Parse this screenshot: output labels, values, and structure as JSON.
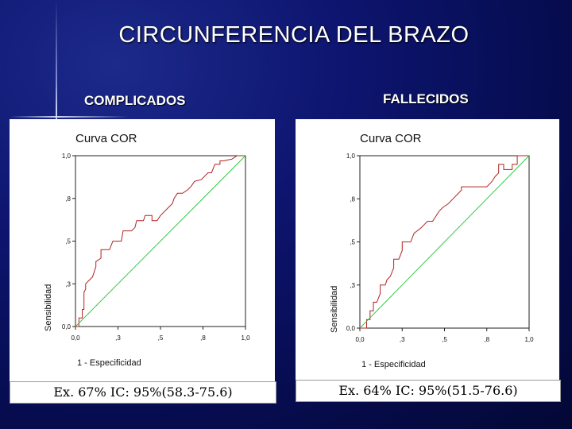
{
  "slide": {
    "title": "CIRCUNFERENCIA DEL BRAZO"
  },
  "colors": {
    "roc_line": "#b22222",
    "reference_line": "#2ecc40",
    "axis": "#222222"
  },
  "panels": [
    {
      "subtitle": "COMPLICADOS",
      "footer": "Ex. 67%  IC: 95%(58.3-75.6)"
    },
    {
      "subtitle": "FALLECIDOS",
      "footer": "Ex. 64%  IC: 95%(51.5-76.6)"
    }
  ],
  "chart_data": [
    {
      "type": "line",
      "title": "Curva COR",
      "xlabel": "1 - Especificidad",
      "ylabel": "Sensibilidad",
      "xlim": [
        0,
        1
      ],
      "ylim": [
        0,
        1
      ],
      "x_ticks": [
        "0,0",
        ",3",
        ",5",
        ",8",
        "1,0"
      ],
      "y_ticks": [
        "0,0",
        ",3",
        ",5",
        ",8",
        "1,0"
      ],
      "grid": false,
      "series": [
        {
          "role": "roc",
          "points": [
            [
              0,
              0
            ],
            [
              0.02,
              0
            ],
            [
              0.02,
              0.05
            ],
            [
              0.04,
              0.05
            ],
            [
              0.04,
              0.1
            ],
            [
              0.05,
              0.1
            ],
            [
              0.05,
              0.2
            ],
            [
              0.06,
              0.22
            ],
            [
              0.06,
              0.25
            ],
            [
              0.08,
              0.27
            ],
            [
              0.1,
              0.29
            ],
            [
              0.12,
              0.35
            ],
            [
              0.12,
              0.38
            ],
            [
              0.15,
              0.4
            ],
            [
              0.15,
              0.45
            ],
            [
              0.2,
              0.45
            ],
            [
              0.22,
              0.5
            ],
            [
              0.27,
              0.5
            ],
            [
              0.28,
              0.56
            ],
            [
              0.33,
              0.56
            ],
            [
              0.35,
              0.58
            ],
            [
              0.36,
              0.62
            ],
            [
              0.4,
              0.62
            ],
            [
              0.41,
              0.65
            ],
            [
              0.45,
              0.65
            ],
            [
              0.45,
              0.62
            ],
            [
              0.48,
              0.62
            ],
            [
              0.5,
              0.65
            ],
            [
              0.55,
              0.7
            ],
            [
              0.57,
              0.72
            ],
            [
              0.58,
              0.75
            ],
            [
              0.6,
              0.78
            ],
            [
              0.63,
              0.78
            ],
            [
              0.66,
              0.8
            ],
            [
              0.68,
              0.82
            ],
            [
              0.7,
              0.85
            ],
            [
              0.74,
              0.86
            ],
            [
              0.76,
              0.88
            ],
            [
              0.78,
              0.9
            ],
            [
              0.8,
              0.9
            ],
            [
              0.82,
              0.95
            ],
            [
              0.85,
              0.95
            ],
            [
              0.85,
              0.97
            ],
            [
              0.87,
              0.97
            ],
            [
              0.92,
              0.98
            ],
            [
              0.95,
              1.0
            ],
            [
              1.0,
              1.0
            ]
          ]
        },
        {
          "role": "reference",
          "points": [
            [
              0,
              0
            ],
            [
              1,
              1
            ]
          ]
        }
      ]
    },
    {
      "type": "line",
      "title": "Curva COR",
      "xlabel": "1 - Especificidad",
      "ylabel": "Sensibilidad",
      "xlim": [
        0,
        1
      ],
      "ylim": [
        0,
        1
      ],
      "x_ticks": [
        "0,0",
        ",3",
        ",5",
        ",8",
        "1,0"
      ],
      "y_ticks": [
        "0,0",
        ",3",
        ",5",
        ",8",
        "1,0"
      ],
      "grid": false,
      "series": [
        {
          "role": "roc",
          "points": [
            [
              0,
              0
            ],
            [
              0.04,
              0
            ],
            [
              0.04,
              0.05
            ],
            [
              0.06,
              0.05
            ],
            [
              0.06,
              0.1
            ],
            [
              0.08,
              0.1
            ],
            [
              0.08,
              0.15
            ],
            [
              0.1,
              0.15
            ],
            [
              0.12,
              0.2
            ],
            [
              0.12,
              0.25
            ],
            [
              0.15,
              0.25
            ],
            [
              0.16,
              0.28
            ],
            [
              0.18,
              0.3
            ],
            [
              0.2,
              0.35
            ],
            [
              0.2,
              0.4
            ],
            [
              0.23,
              0.4
            ],
            [
              0.25,
              0.45
            ],
            [
              0.25,
              0.5
            ],
            [
              0.3,
              0.5
            ],
            [
              0.32,
              0.55
            ],
            [
              0.36,
              0.58
            ],
            [
              0.38,
              0.6
            ],
            [
              0.4,
              0.62
            ],
            [
              0.43,
              0.62
            ],
            [
              0.45,
              0.65
            ],
            [
              0.47,
              0.68
            ],
            [
              0.49,
              0.7
            ],
            [
              0.52,
              0.72
            ],
            [
              0.55,
              0.75
            ],
            [
              0.6,
              0.8
            ],
            [
              0.6,
              0.82
            ],
            [
              0.75,
              0.82
            ],
            [
              0.78,
              0.85
            ],
            [
              0.8,
              0.88
            ],
            [
              0.82,
              0.9
            ],
            [
              0.82,
              0.95
            ],
            [
              0.85,
              0.95
            ],
            [
              0.85,
              0.92
            ],
            [
              0.9,
              0.92
            ],
            [
              0.9,
              0.95
            ],
            [
              0.93,
              0.95
            ],
            [
              0.93,
              1.0
            ],
            [
              1.0,
              1.0
            ]
          ]
        },
        {
          "role": "reference",
          "points": [
            [
              0,
              0
            ],
            [
              1,
              1
            ]
          ]
        }
      ]
    }
  ]
}
